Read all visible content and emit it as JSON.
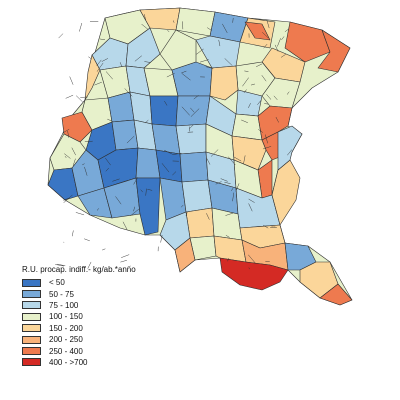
{
  "legend": {
    "title": "R.U. procap. indiff.- kg/ab.*anno",
    "classes": [
      {
        "label": "< 50",
        "color": "#3a76c4"
      },
      {
        "label": "50 - 75",
        "color": "#78a9d8"
      },
      {
        "label": "75 - 100",
        "color": "#b7d8ea"
      },
      {
        "label": "100 - 150",
        "color": "#e7f1cb"
      },
      {
        "label": "150 - 200",
        "color": "#fbd69a"
      },
      {
        "label": "200 - 250",
        "color": "#f8b27a"
      },
      {
        "label": "250 - 400",
        "color": "#ee7a4f"
      },
      {
        "label": "400 - >700",
        "color": "#d42a24"
      }
    ]
  },
  "map": {
    "region_fill_default": "#e7f1cb",
    "boundary_color": "#2e2e2e"
  }
}
